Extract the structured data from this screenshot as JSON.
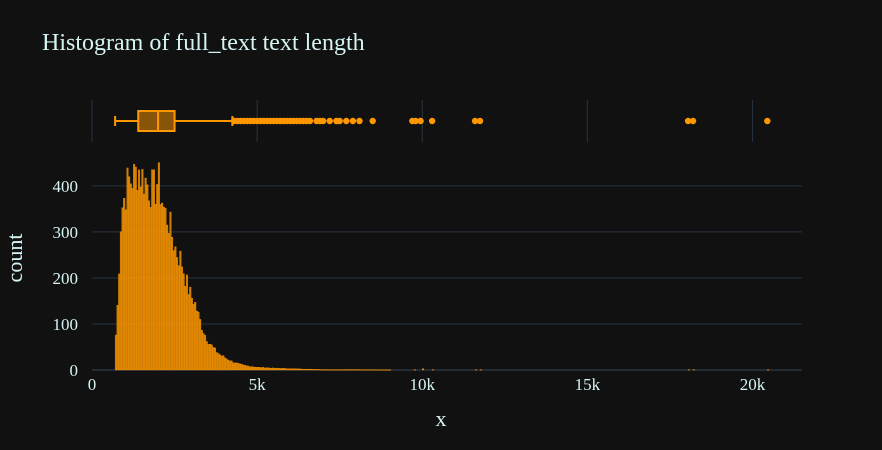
{
  "colors": {
    "background": "#111111",
    "plot_background": "#111111",
    "grid": "#283442",
    "accent": "#ff9800",
    "text": "#d6f4f4"
  },
  "chart_data": {
    "type": "bar",
    "title": "Histogram of full_text text length",
    "xlabel": "x",
    "ylabel": "count",
    "xlim": [
      0,
      21500
    ],
    "ylim": [
      0,
      465
    ],
    "x_ticks": [
      {
        "value": 0,
        "label": "0"
      },
      {
        "value": 5000,
        "label": "5k"
      },
      {
        "value": 10000,
        "label": "10k"
      },
      {
        "value": 15000,
        "label": "15k"
      },
      {
        "value": 20000,
        "label": "20k"
      }
    ],
    "y_ticks": [
      {
        "value": 0,
        "label": "0"
      },
      {
        "value": 100,
        "label": "100"
      },
      {
        "value": 200,
        "label": "200"
      },
      {
        "value": 300,
        "label": "300"
      },
      {
        "value": 400,
        "label": "400"
      }
    ],
    "grid": true,
    "histogram": {
      "bin_width": 50,
      "bin_start": 700,
      "bin_end": 20550,
      "counts_approx_profile": [
        [
          700,
          45
        ],
        [
          800,
          170
        ],
        [
          850,
          290
        ],
        [
          900,
          350
        ],
        [
          1000,
          380
        ],
        [
          1100,
          410
        ],
        [
          1200,
          415
        ],
        [
          1300,
          420
        ],
        [
          1400,
          440
        ],
        [
          1500,
          420
        ],
        [
          1600,
          415
        ],
        [
          1700,
          400
        ],
        [
          1800,
          395
        ],
        [
          1900,
          390
        ],
        [
          2000,
          415
        ],
        [
          2100,
          380
        ],
        [
          2200,
          340
        ],
        [
          2300,
          330
        ],
        [
          2400,
          300
        ],
        [
          2500,
          270
        ],
        [
          2600,
          250
        ],
        [
          2700,
          240
        ],
        [
          2800,
          210
        ],
        [
          2900,
          180
        ],
        [
          3000,
          160
        ],
        [
          3100,
          150
        ],
        [
          3200,
          125
        ],
        [
          3300,
          100
        ],
        [
          3400,
          80
        ],
        [
          3500,
          65
        ],
        [
          3600,
          55
        ],
        [
          3700,
          45
        ],
        [
          3800,
          38
        ],
        [
          3900,
          32
        ],
        [
          4000,
          28
        ],
        [
          4200,
          20
        ],
        [
          4400,
          14
        ],
        [
          4600,
          10
        ],
        [
          4800,
          8
        ],
        [
          5000,
          6
        ],
        [
          5500,
          4
        ],
        [
          6000,
          3
        ],
        [
          6500,
          2
        ],
        [
          7000,
          1
        ],
        [
          8000,
          1
        ],
        [
          10000,
          0
        ]
      ],
      "sparse_counts": [
        {
          "x": 8500,
          "count": 1
        },
        {
          "x": 9750,
          "count": 1
        },
        {
          "x": 10000,
          "count": 3
        },
        {
          "x": 10300,
          "count": 1
        },
        {
          "x": 11600,
          "count": 1
        },
        {
          "x": 11750,
          "count": 1
        },
        {
          "x": 18050,
          "count": 1
        },
        {
          "x": 18200,
          "count": 1
        },
        {
          "x": 20450,
          "count": 1
        }
      ]
    },
    "box_marginal": {
      "lower_fence": 700,
      "q1": 1400,
      "median": 2000,
      "q3": 2500,
      "upper_fence": 4250,
      "outliers": [
        4300,
        4400,
        4500,
        4600,
        4700,
        4800,
        4900,
        5000,
        5100,
        5200,
        5300,
        5400,
        5500,
        5600,
        5700,
        5800,
        5900,
        6000,
        6100,
        6200,
        6300,
        6400,
        6500,
        6600,
        6800,
        6900,
        7000,
        7200,
        7400,
        7500,
        7700,
        7900,
        8100,
        8500,
        9700,
        9800,
        9950,
        10300,
        11600,
        11750,
        18050,
        18200,
        20450
      ]
    }
  }
}
